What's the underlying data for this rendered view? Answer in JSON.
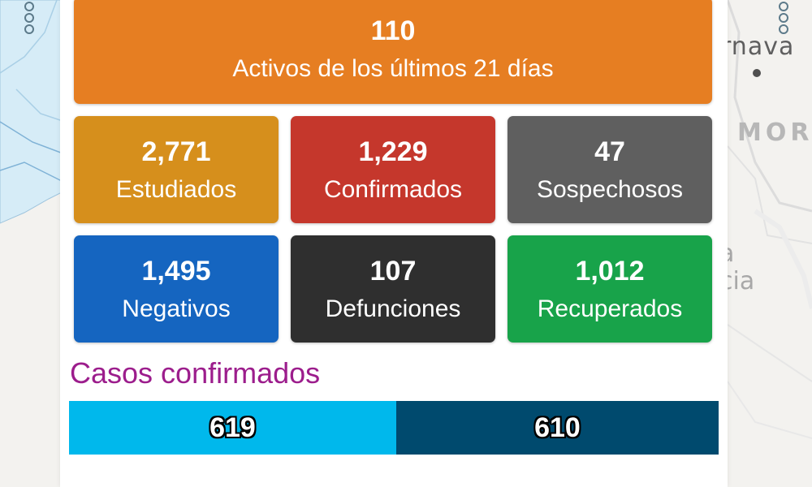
{
  "active": {
    "value": "110",
    "label": "Activos de los últimos 21 días"
  },
  "stats": [
    {
      "value": "2,771",
      "label": "Estudiados"
    },
    {
      "value": "1,229",
      "label": "Confirmados"
    },
    {
      "value": "47",
      "label": "Sospechosos"
    },
    {
      "value": "1,495",
      "label": "Negativos"
    },
    {
      "value": "107",
      "label": "Defunciones"
    },
    {
      "value": "1,012",
      "label": "Recuperados"
    }
  ],
  "colors": {
    "active": "#e67e22",
    "estudiados": "#d68f1c",
    "confirmados": "#c5372c",
    "sospechosos": "#5f5f5f",
    "negativos": "#1565c0",
    "defunciones": "#2f2f2f",
    "recuperados": "#18a34a",
    "section_title": "#9c1d8c"
  },
  "confirmed_cases": {
    "title": "Casos confirmados",
    "segments": [
      {
        "value": "619",
        "color": "#00b8ec"
      },
      {
        "value": "610",
        "color": "#004a6e"
      }
    ]
  },
  "map": {
    "labels": [
      "rnava",
      "MOR",
      "a",
      "cia"
    ]
  }
}
